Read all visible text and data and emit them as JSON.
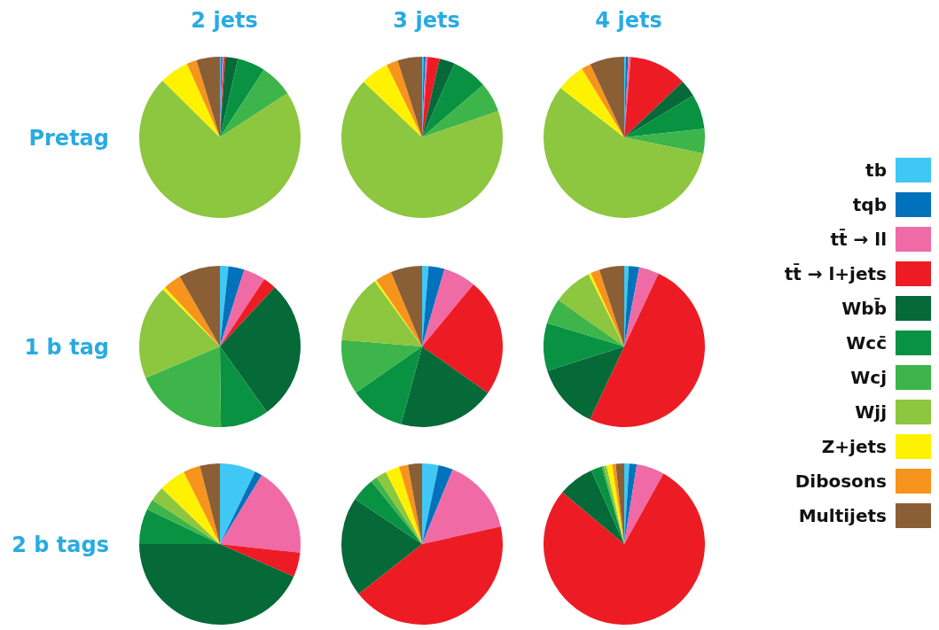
{
  "chart_data": [
    {
      "type": "pie",
      "title": "2 jets",
      "ylabel": "Pretag",
      "categories": [
        null,
        null,
        null,
        null,
        null,
        null,
        null,
        null,
        null,
        null,
        null
      ],
      "colors": [
        "#40c8f4",
        "#0072bc",
        "#f06aa6",
        "#ed1c24",
        "#056938",
        "#0a9243",
        "#3db54a",
        "#8dc63f",
        "#fff200",
        "#f7941d",
        "#8a5f36"
      ],
      "values": [
        0.2,
        0.3,
        0.3,
        0.3,
        2.5,
        5.6,
        6.6,
        71.6,
        5.9,
        2.0,
        4.7
      ]
    },
    {
      "type": "pie",
      "title": "3 jets",
      "categories": [
        null,
        null,
        null,
        null,
        null,
        null,
        null,
        null,
        null,
        null,
        null
      ],
      "colors": [
        "#40c8f4",
        "#0072bc",
        "#f06aa6",
        "#ed1c24",
        "#056938",
        "#0a9243",
        "#3db54a",
        "#8dc63f",
        "#fff200",
        "#f7941d",
        "#8a5f36"
      ],
      "values": [
        0.3,
        0.4,
        0.4,
        2.4,
        3.1,
        7.1,
        6.0,
        67.4,
        5.7,
        2.3,
        4.9
      ]
    },
    {
      "type": "pie",
      "title": "4 jets",
      "categories": [
        null,
        null,
        null,
        null,
        null,
        null,
        null,
        null,
        null,
        null,
        null
      ],
      "colors": [
        "#40c8f4",
        "#0072bc",
        "#f06aa6",
        "#ed1c24",
        "#056938",
        "#0a9243",
        "#3db54a",
        "#8dc63f",
        "#fff200",
        "#f7941d",
        "#8a5f36"
      ],
      "values": [
        0.3,
        0.5,
        0.5,
        11.6,
        3.4,
        7.0,
        4.9,
        57.3,
        5.7,
        1.9,
        6.9
      ]
    },
    {
      "type": "pie",
      "ylabel": "1 b tag",
      "categories": [
        null,
        null,
        null,
        null,
        null,
        null,
        null,
        null,
        null,
        null,
        null
      ],
      "colors": [
        "#40c8f4",
        "#0072bc",
        "#f06aa6",
        "#ed1c24",
        "#056938",
        "#0a9243",
        "#3db54a",
        "#8dc63f",
        "#fff200",
        "#f7941d",
        "#8a5f36"
      ],
      "values": [
        1.7,
        3.2,
        4.4,
        2.6,
        28.2,
        9.7,
        18.8,
        18.9,
        0.6,
        3.6,
        8.3
      ]
    },
    {
      "type": "pie",
      "categories": [
        null,
        null,
        null,
        null,
        null,
        null,
        null,
        null,
        null,
        null,
        null
      ],
      "colors": [
        "#40c8f4",
        "#0072bc",
        "#f06aa6",
        "#ed1c24",
        "#056938",
        "#0a9243",
        "#3db54a",
        "#8dc63f",
        "#fff200",
        "#f7941d",
        "#8a5f36"
      ],
      "values": [
        1.3,
        3.2,
        6.5,
        23.8,
        19.4,
        11.1,
        11.0,
        13.7,
        0.4,
        3.3,
        6.3
      ]
    },
    {
      "type": "pie",
      "legend": "right",
      "categories": [
        "tb",
        "tqb",
        "tt̄ → ll",
        "tt̄ → l+jets",
        "Wbb̄",
        "Wcc̄",
        "Wcj",
        "Wjj",
        "Z+jets",
        "Dibosons",
        "Multijets"
      ],
      "colors": [
        "#40c8f4",
        "#0072bc",
        "#f06aa6",
        "#ed1c24",
        "#056938",
        "#0a9243",
        "#3db54a",
        "#8dc63f",
        "#fff200",
        "#f7941d",
        "#8a5f36"
      ],
      "values": [
        0.9,
        2.1,
        4.0,
        50.0,
        13.1,
        9.6,
        5.1,
        7.9,
        0.5,
        1.8,
        5.0
      ]
    },
    {
      "type": "pie",
      "ylabel": "2 b tags",
      "categories": [
        null,
        null,
        null,
        null,
        null,
        null,
        null,
        null,
        null,
        null,
        null
      ],
      "colors": [
        "#40c8f4",
        "#0072bc",
        "#f06aa6",
        "#ed1c24",
        "#056938",
        "#0a9243",
        "#3db54a",
        "#8dc63f",
        "#fff200",
        "#f7941d",
        "#8a5f36"
      ],
      "values": [
        7.2,
        1.5,
        18.0,
        4.9,
        43.4,
        7.1,
        2.1,
        3.0,
        5.4,
        3.4,
        4.0
      ]
    },
    {
      "type": "pie",
      "categories": [
        null,
        null,
        null,
        null,
        null,
        null,
        null,
        null,
        null,
        null,
        null
      ],
      "colors": [
        "#40c8f4",
        "#0072bc",
        "#f06aa6",
        "#ed1c24",
        "#056938",
        "#0a9243",
        "#3db54a",
        "#8dc63f",
        "#fff200",
        "#f7941d",
        "#8a5f36"
      ],
      "values": [
        3.3,
        2.9,
        15.3,
        42.9,
        20.0,
        4.8,
        1.3,
        2.1,
        2.8,
        1.8,
        2.8
      ]
    },
    {
      "type": "pie",
      "categories": [
        null,
        null,
        null,
        null,
        null,
        null,
        null,
        null,
        null,
        null,
        null
      ],
      "colors": [
        "#40c8f4",
        "#0072bc",
        "#f06aa6",
        "#ed1c24",
        "#056938",
        "#0a9243",
        "#3db54a",
        "#8dc63f",
        "#fff200",
        "#f7941d",
        "#8a5f36"
      ],
      "values": [
        1.0,
        1.5,
        5.6,
        78.0,
        7.2,
        2.2,
        0.4,
        0.6,
        1.1,
        0.7,
        1.7
      ]
    }
  ]
}
